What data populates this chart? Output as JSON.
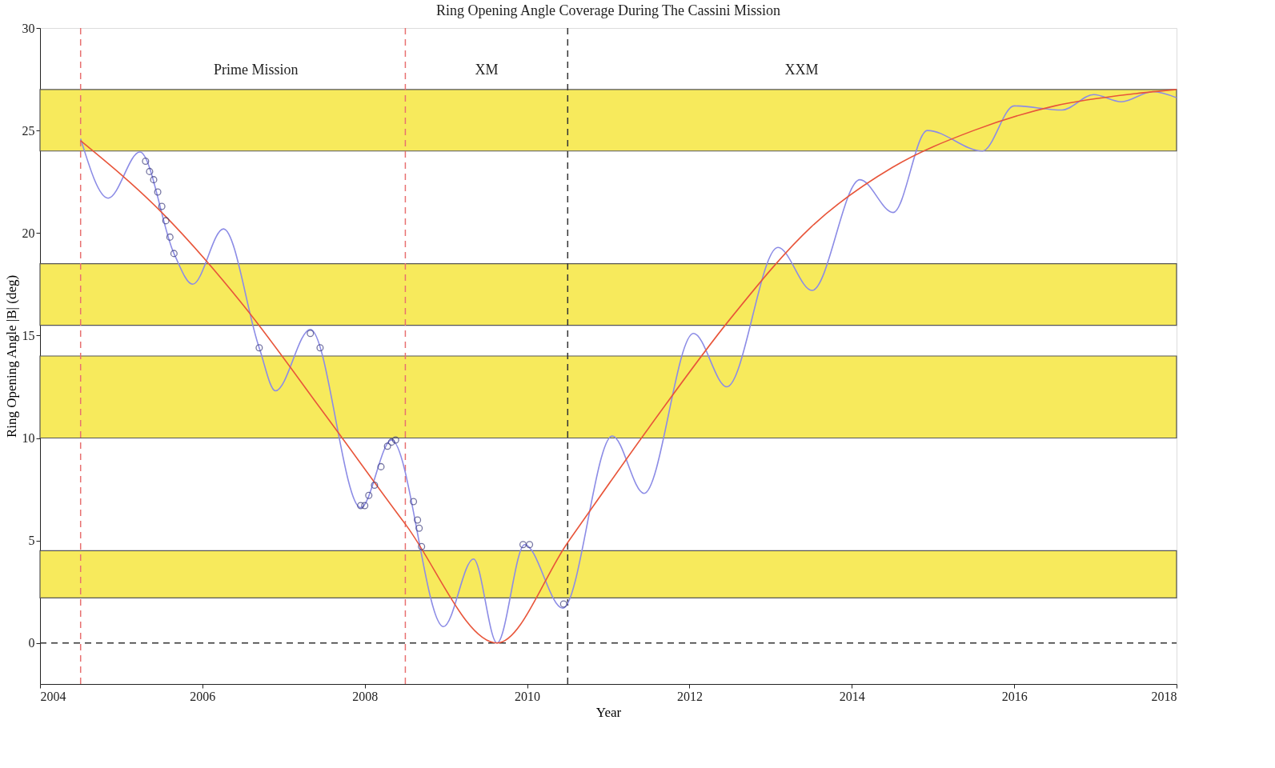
{
  "chart_data": {
    "type": "line",
    "title": "Ring Opening Angle Coverage During The Cassini Mission",
    "xlabel": "Year",
    "ylabel": "Ring Opening Angle |B| (deg)",
    "xlim": [
      2004,
      2018
    ],
    "xticks": [
      2004,
      2006,
      2008,
      2010,
      2012,
      2014,
      2016,
      2018
    ],
    "ylim": [
      -2,
      30
    ],
    "yticks": [
      0,
      5,
      10,
      15,
      20,
      25,
      30
    ],
    "grid": false,
    "series": [
      {
        "color": "#8c8ce6",
        "line_style": "solid",
        "x": [
          2004.5,
          2004.84,
          2005.23,
          2005.65,
          2005.88,
          2006.26,
          2006.7,
          2006.9,
          2007.33,
          2007.95,
          2008.33,
          2008.97,
          2009.34,
          2009.63,
          2009.97,
          2010.44,
          2011.05,
          2011.44,
          2012.05,
          2012.46,
          2013.09,
          2013.51,
          2014.1,
          2014.51,
          2014.93,
          2015.61,
          2016.0,
          2016.59,
          2016.98,
          2017.32,
          2017.71,
          2018
        ],
        "values": [
          24.6,
          21.7,
          23.95,
          19.0,
          17.5,
          20.2,
          14.4,
          12.3,
          15.3,
          6.6,
          9.9,
          0.8,
          4.1,
          0,
          4.8,
          1.7,
          10.1,
          7.3,
          15.1,
          12.5,
          19.3,
          17.2,
          22.6,
          21.0,
          25.0,
          24.0,
          26.2,
          26.0,
          26.75,
          26.4,
          26.9,
          26.6
        ]
      },
      {
        "color": "#e8553a",
        "line_style": "solid",
        "x": [
          2004.5,
          2005.5,
          2006.5,
          2007.5,
          2008.5,
          2009.63,
          2010.5,
          2011.5,
          2012.5,
          2013.5,
          2014.5,
          2015.5,
          2016.5,
          2017.5,
          2018
        ],
        "values": [
          24.5,
          21.0,
          16.5,
          11.2,
          5.8,
          0,
          4.9,
          10.5,
          15.8,
          20.3,
          23.2,
          25.0,
          26.2,
          26.8,
          27.0
        ]
      },
      {
        "type": "scatter",
        "color": "#3a3a7a",
        "marker": "circle",
        "x": [
          2005.3,
          2005.35,
          2005.4,
          2005.45,
          2005.5,
          2005.55,
          2005.6,
          2005.65,
          2006.7,
          2007.33,
          2007.45,
          2007.95,
          2008.0,
          2008.05,
          2008.12,
          2008.2,
          2008.28,
          2008.33,
          2008.38,
          2008.6,
          2008.65,
          2008.67,
          2008.7,
          2009.95,
          2010.03,
          2010.45
        ],
        "values": [
          23.5,
          23.0,
          22.6,
          22.0,
          21.3,
          20.6,
          19.8,
          19.0,
          14.4,
          15.1,
          14.4,
          6.7,
          6.7,
          7.2,
          7.7,
          8.6,
          9.6,
          9.8,
          9.9,
          6.9,
          6.0,
          5.6,
          4.7,
          4.8,
          4.8,
          1.9
        ]
      }
    ],
    "bands": [
      {
        "axis": "y",
        "from": 24,
        "to": 27,
        "color": "#f7ea5c"
      },
      {
        "axis": "y",
        "from": 15.5,
        "to": 18.5,
        "color": "#f7ea5c"
      },
      {
        "axis": "y",
        "from": 10,
        "to": 14,
        "color": "#f7ea5c"
      },
      {
        "axis": "y",
        "from": 2.2,
        "to": 4.5,
        "color": "#f7ea5c"
      }
    ],
    "ref_lines": [
      {
        "axis": "x",
        "value": 2004.5,
        "color": "#e87070",
        "line_style": "dashed"
      },
      {
        "axis": "x",
        "value": 2008.5,
        "color": "#e87070",
        "line_style": "dashed"
      },
      {
        "axis": "x",
        "value": 2010.5,
        "color": "#333333",
        "line_style": "dashed"
      },
      {
        "axis": "y",
        "value": 0,
        "color": "#333333",
        "line_style": "dashed"
      }
    ],
    "annotations": [
      "Prime Mission",
      "XM",
      "XXM"
    ]
  }
}
